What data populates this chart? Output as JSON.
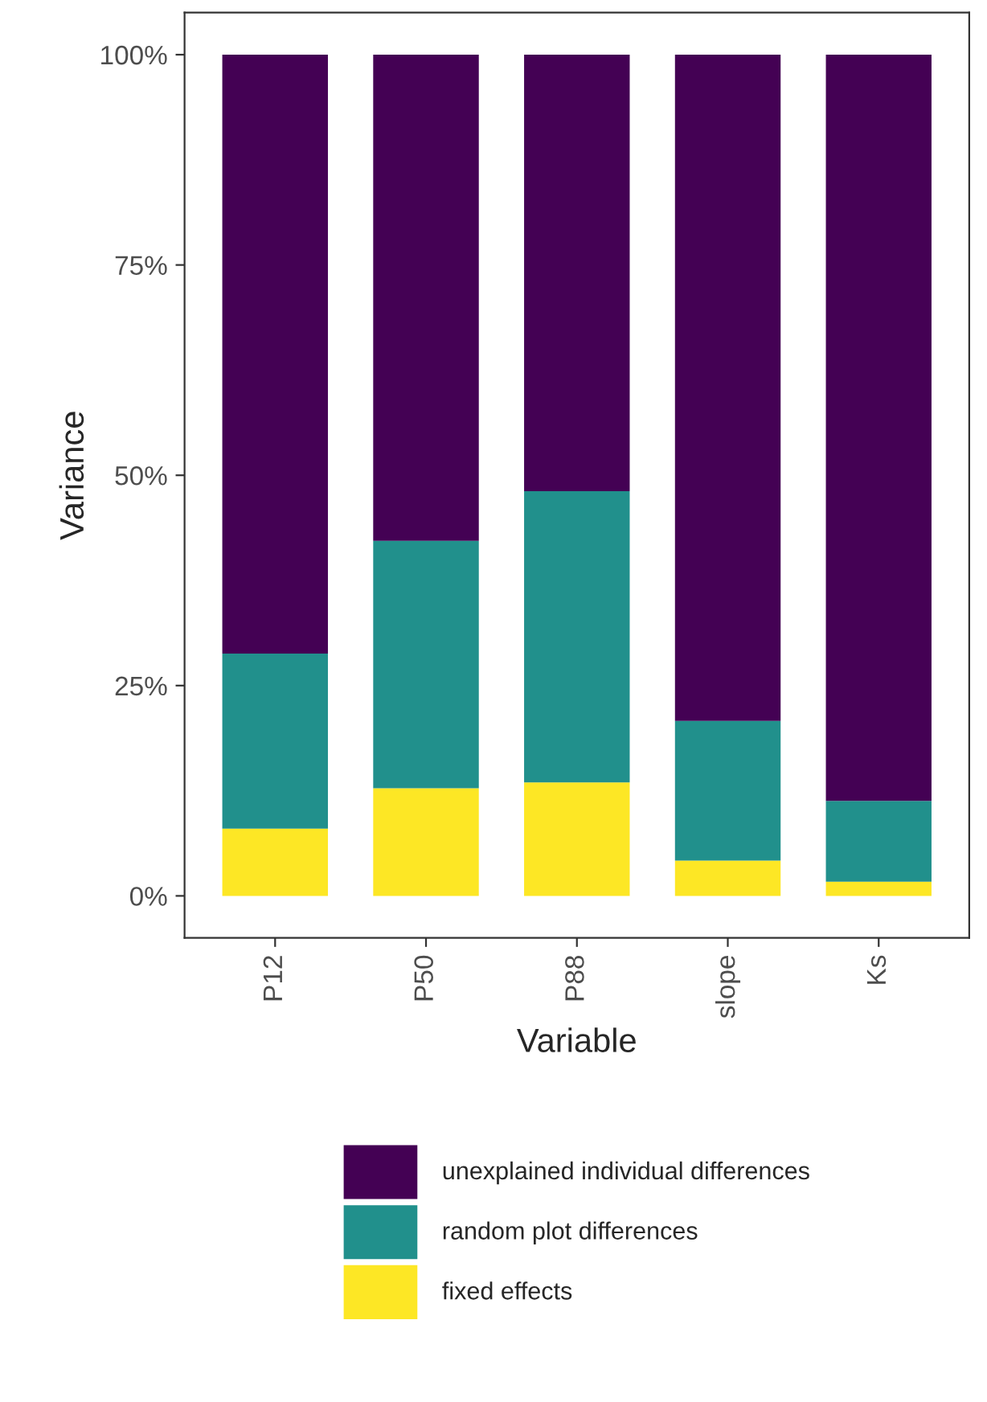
{
  "chart_data": {
    "type": "bar",
    "stacked": true,
    "xlabel": "Variable",
    "ylabel": "Variance",
    "categories": [
      "P12",
      "P50",
      "P88",
      "slope",
      "Ks"
    ],
    "series": [
      {
        "name": "fixed effects",
        "color": "#fde725",
        "values": [
          8.0,
          12.8,
          13.5,
          4.2,
          1.7
        ]
      },
      {
        "name": "random plot differences",
        "color": "#21908c",
        "values": [
          20.8,
          29.4,
          34.6,
          16.6,
          9.6
        ]
      },
      {
        "name": "unexplained individual differences",
        "color": "#440154",
        "values": [
          71.2,
          57.8,
          51.9,
          79.2,
          88.7
        ]
      }
    ],
    "ylim": [
      -5,
      105
    ],
    "yticks": [
      {
        "value": 0,
        "label": "0%"
      },
      {
        "value": 25,
        "label": "25%"
      },
      {
        "value": 50,
        "label": "50%"
      },
      {
        "value": 75,
        "label": "75%"
      },
      {
        "value": 100,
        "label": "100%"
      }
    ],
    "grid": false,
    "legend": "bottom"
  }
}
